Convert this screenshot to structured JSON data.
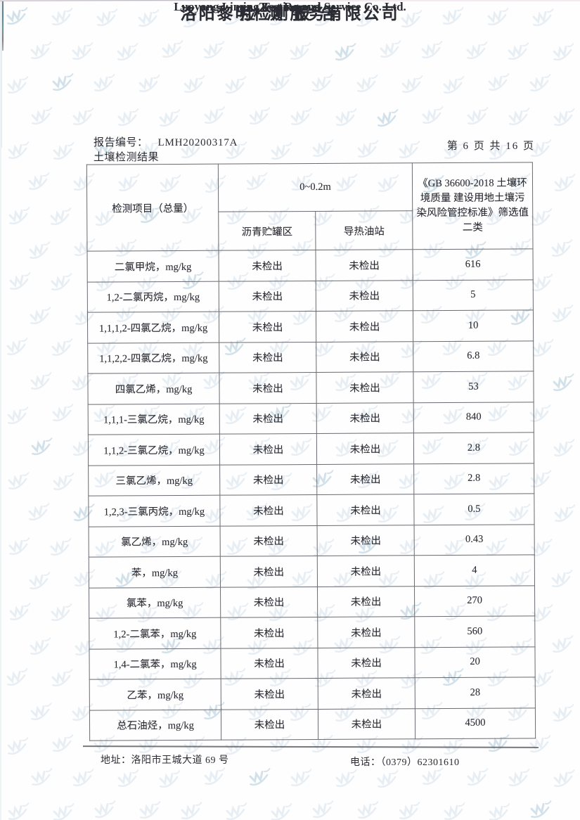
{
  "header": {
    "company_name_cn": "洛阳黎明检测服务有限公司",
    "company_name_en": "Luoyang Liming Testing and Service Co. Ltd.",
    "report_title_cn": "检 测 报 告",
    "report_title_en": "Test Report",
    "report_no_label": "报告编号：",
    "report_no_value": "LMH20200317A",
    "page_indicator": "第 6 页 共 16 页",
    "section_title": "土壤检测结果"
  },
  "table": {
    "columns": {
      "item_header": "检测项目（总量）",
      "depth_header": "0~0.2m",
      "location1_header": "沥青贮罐区",
      "location2_header": "导热油站",
      "standard_header": "《GB 36600-2018 土壤环境质量 建设用地土壤污染风险管控标准》筛选值二类"
    },
    "rows": [
      {
        "item": "二氯甲烷，mg/kg",
        "location1": "未检出",
        "location2": "未检出",
        "screening_value": "616"
      },
      {
        "item": "1,2-二氯丙烷，mg/kg",
        "location1": "未检出",
        "location2": "未检出",
        "screening_value": "5"
      },
      {
        "item": "1,1,1,2-四氯乙烷，mg/kg",
        "location1": "未检出",
        "location2": "未检出",
        "screening_value": "10"
      },
      {
        "item": "1,1,2,2-四氯乙烷，mg/kg",
        "location1": "未检出",
        "location2": "未检出",
        "screening_value": "6.8"
      },
      {
        "item": "四氯乙烯，mg/kg",
        "location1": "未检出",
        "location2": "未检出",
        "screening_value": "53"
      },
      {
        "item": "1,1,1-三氯乙烷，mg/kg",
        "location1": "未检出",
        "location2": "未检出",
        "screening_value": "840"
      },
      {
        "item": "1,1,2-三氯乙烷，mg/kg",
        "location1": "未检出",
        "location2": "未检出",
        "screening_value": "2.8"
      },
      {
        "item": "三氯乙烯，mg/kg",
        "location1": "未检出",
        "location2": "未检出",
        "screening_value": "2.8"
      },
      {
        "item": "1,2,3-三氯丙烷，mg/kg",
        "location1": "未检出",
        "location2": "未检出",
        "screening_value": "0.5"
      },
      {
        "item": "氯乙烯，mg/kg",
        "location1": "未检出",
        "location2": "未检出",
        "screening_value": "0.43"
      },
      {
        "item": "苯，mg/kg",
        "location1": "未检出",
        "location2": "未检出",
        "screening_value": "4"
      },
      {
        "item": "氯苯，mg/kg",
        "location1": "未检出",
        "location2": "未检出",
        "screening_value": "270"
      },
      {
        "item": "1,2-二氯苯，mg/kg",
        "location1": "未检出",
        "location2": "未检出",
        "screening_value": "560"
      },
      {
        "item": "1,4-二氯苯，mg/kg",
        "location1": "未检出",
        "location2": "未检出",
        "screening_value": "20"
      },
      {
        "item": "乙苯，mg/kg",
        "location1": "未检出",
        "location2": "未检出",
        "screening_value": "28"
      },
      {
        "item": "总石油烃，mg/kg",
        "location1": "未检出",
        "location2": "未检出",
        "screening_value": "4500"
      }
    ]
  },
  "footer": {
    "address_label": "地址：",
    "address_value": "洛阳市王城大道 69 号",
    "phone_label": "电话：",
    "phone_value": "（0379）62301610"
  },
  "watermark": {
    "icon": "liming-logo",
    "color": "#e7eef4",
    "accent_color": "#d3e2ea"
  }
}
